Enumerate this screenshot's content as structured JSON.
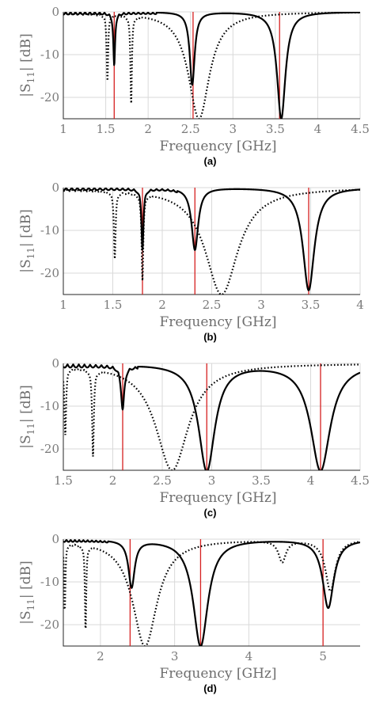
{
  "chart_data": [
    {
      "type": "line",
      "label": "(a)",
      "xlabel": "Frequency [GHz]",
      "ylabel_main": "|S",
      "ylabel_sub": "11",
      "ylabel_rest": "| [dB]",
      "xlim": [
        1,
        4.5
      ],
      "ylim": [
        -25,
        0
      ],
      "xticks": [
        1,
        1.5,
        2,
        2.5,
        3,
        3.5,
        4,
        4.5
      ],
      "yticks": [
        0,
        -10,
        -20
      ],
      "markers": [
        1.6,
        2.53,
        3.55
      ],
      "series": [
        {
          "style": "solid",
          "dips": [
            {
              "f": 1.6,
              "d": -12.5,
              "w": 0.012
            },
            {
              "f": 2.52,
              "d": -17,
              "w": 0.035
            },
            {
              "f": 3.57,
              "d": -25,
              "w": 0.06
            }
          ],
          "ripple": {
            "start": 1.0,
            "end": 2.1,
            "amp": 0.6
          }
        },
        {
          "style": "dotted",
          "dips": [
            {
              "f": 1.52,
              "d": -15.5,
              "w": 0.01
            },
            {
              "f": 1.8,
              "d": -20.5,
              "w": 0.01
            },
            {
              "f": 2.6,
              "d": -25,
              "w": 0.15
            }
          ],
          "ripple": {
            "start": 1.0,
            "end": 1.9,
            "amp": 0.4
          }
        }
      ]
    },
    {
      "type": "line",
      "label": "(b)",
      "xlabel": "Frequency [GHz]",
      "ylabel_main": "|S",
      "ylabel_sub": "11",
      "ylabel_rest": "| [dB]",
      "xlim": [
        1,
        4
      ],
      "ylim": [
        -25,
        0
      ],
      "xticks": [
        1,
        1.5,
        2,
        2.5,
        3,
        3.5,
        4
      ],
      "xticklabels": [
        "1",
        "1.5",
        "2",
        "2.5",
        "3",
        "3.5",
        "4"
      ],
      "yticks": [
        0,
        -10,
        -20
      ],
      "markers": [
        1.8,
        2.33,
        3.48
      ],
      "series": [
        {
          "style": "solid",
          "dips": [
            {
              "f": 1.8,
              "d": -14,
              "w": 0.012
            },
            {
              "f": 2.33,
              "d": -14.5,
              "w": 0.04
            },
            {
              "f": 3.48,
              "d": -24,
              "w": 0.07
            }
          ],
          "ripple": {
            "start": 1.0,
            "end": 2.15,
            "amp": 0.6
          }
        },
        {
          "style": "dotted",
          "dips": [
            {
              "f": 1.52,
              "d": -15.5,
              "w": 0.01
            },
            {
              "f": 1.8,
              "d": -20,
              "w": 0.01
            },
            {
              "f": 2.6,
              "d": -25,
              "w": 0.2
            }
          ],
          "ripple": {
            "start": 1.0,
            "end": 1.9,
            "amp": 0.4
          }
        }
      ]
    },
    {
      "type": "line",
      "label": "(c)",
      "xlabel": "Frequency [GHz]",
      "ylabel_main": "|S",
      "ylabel_sub": "11",
      "ylabel_rest": "| [dB]",
      "xlim": [
        1.5,
        4.5
      ],
      "ylim": [
        -25,
        0
      ],
      "xticks": [
        1.5,
        2,
        2.5,
        3,
        3.5,
        4,
        4.5
      ],
      "yticks": [
        0,
        -10,
        -20
      ],
      "markers": [
        2.1,
        2.95,
        4.1
      ],
      "series": [
        {
          "style": "solid",
          "dips": [
            {
              "f": 2.1,
              "d": -10,
              "w": 0.02
            },
            {
              "f": 2.95,
              "d": -25,
              "w": 0.1
            },
            {
              "f": 4.1,
              "d": -25,
              "w": 0.12
            }
          ],
          "ripple": {
            "start": 1.5,
            "end": 2.25,
            "amp": 0.8
          }
        },
        {
          "style": "dotted",
          "dips": [
            {
              "f": 1.52,
              "d": -15.5,
              "w": 0.01
            },
            {
              "f": 1.8,
              "d": -20,
              "w": 0.01
            },
            {
              "f": 2.6,
              "d": -25,
              "w": 0.2
            }
          ],
          "ripple": {
            "start": 1.5,
            "end": 1.9,
            "amp": 0.4
          }
        }
      ]
    },
    {
      "type": "line",
      "label": "(d)",
      "xlabel": "Frequency [GHz]",
      "ylabel_main": "|S",
      "ylabel_sub": "11",
      "ylabel_rest": "| [dB]",
      "xlim": [
        1.5,
        5.5
      ],
      "ylim": [
        -25,
        0
      ],
      "xticks": [
        2,
        3,
        4,
        5
      ],
      "yticks": [
        0,
        -10,
        -20
      ],
      "markers": [
        2.4,
        3.35,
        5.0
      ],
      "series": [
        {
          "style": "solid",
          "dips": [
            {
              "f": 2.42,
              "d": -11,
              "w": 0.05
            },
            {
              "f": 3.35,
              "d": -25,
              "w": 0.12
            },
            {
              "f": 5.07,
              "d": -16,
              "w": 0.09
            }
          ],
          "ripple": {
            "start": 1.5,
            "end": 2.1,
            "amp": 0.5
          }
        },
        {
          "style": "dotted",
          "dips": [
            {
              "f": 1.52,
              "d": -15.5,
              "w": 0.01
            },
            {
              "f": 1.8,
              "d": -20,
              "w": 0.01
            },
            {
              "f": 2.6,
              "d": -25,
              "w": 0.2
            },
            {
              "f": 4.45,
              "d": -5,
              "w": 0.06
            },
            {
              "f": 5.1,
              "d": -12,
              "w": 0.08
            }
          ],
          "ripple": {
            "start": 1.5,
            "end": 1.9,
            "amp": 0.4
          }
        }
      ]
    }
  ]
}
